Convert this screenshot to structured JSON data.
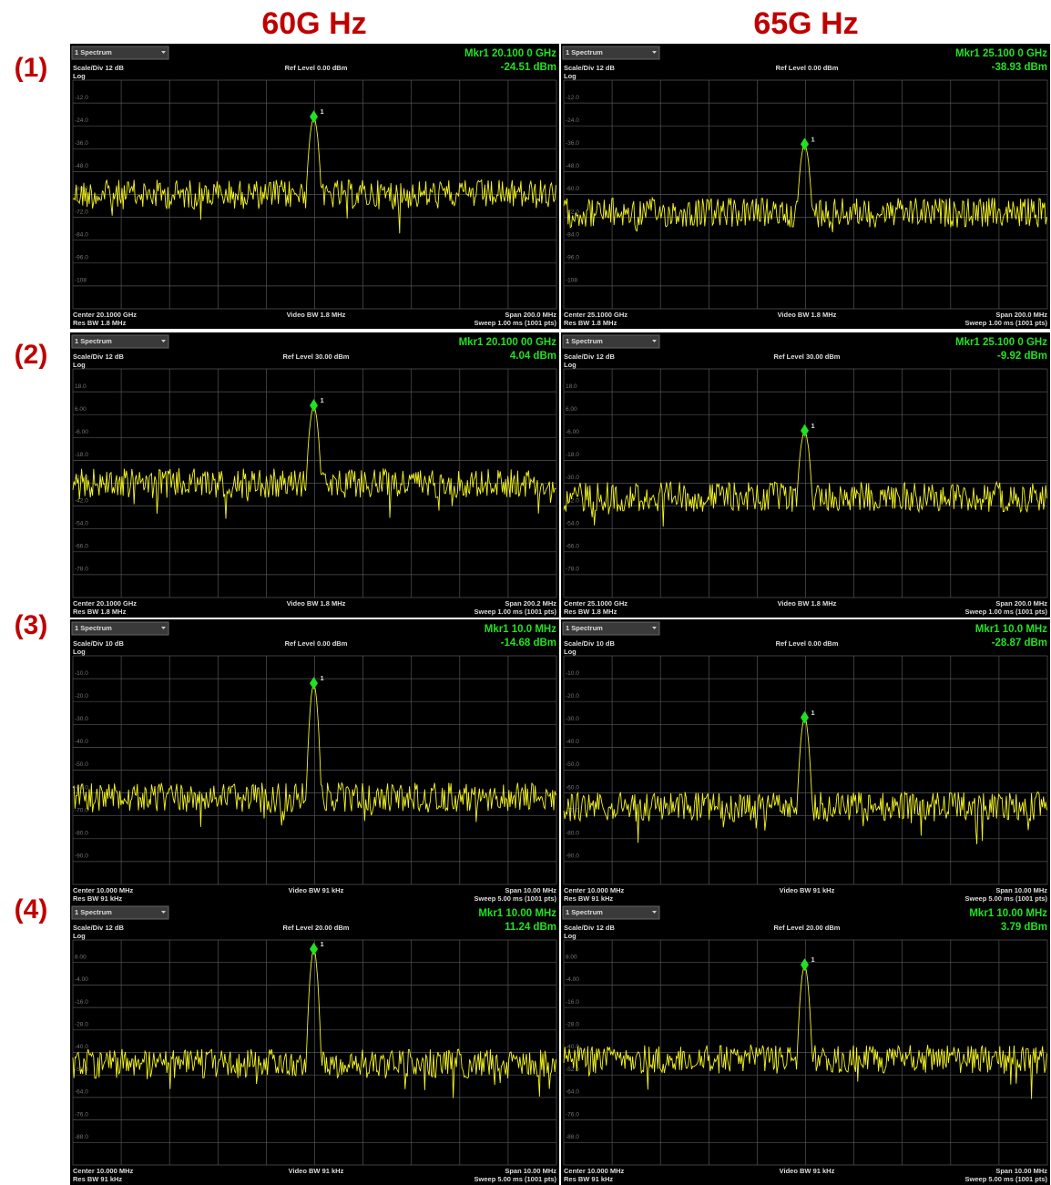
{
  "column_headers": [
    "60G Hz",
    "65G Hz"
  ],
  "row_labels": [
    "(1)",
    "(2)",
    "(3)",
    "(4)"
  ],
  "panels": [
    {
      "spectrum": "1 Spectrum",
      "marker": "Mkr1  20.100 0 GHz",
      "marker_level": "-24.51 dBm",
      "marker_id": "1",
      "scale": "Scale/Div 12 dB",
      "ref": "Ref Level 0.00 dBm",
      "log": "Log",
      "center": "Center 20.1000 GHz",
      "vbw": "Video BW 1.8 MHz",
      "span": "Span 200.0 MHz",
      "rbw": "Res BW 1.8 MHz",
      "sweep": "Sweep 1.00 ms (1001 pts)",
      "grid_labels": [
        "-12.0",
        "-24.0",
        "-36.0",
        "-48.0",
        "-60.0",
        "-72.0",
        "-84.0",
        "-96.0",
        "-108"
      ]
    },
    {
      "spectrum": "1 Spectrum",
      "marker": "Mkr1  25.100 0 GHz",
      "marker_level": "-38.93 dBm",
      "marker_id": "1",
      "scale": "Scale/Div 12 dB",
      "ref": "Ref Level 0.00 dBm",
      "log": "Log",
      "center": "Center 25.1000 GHz",
      "vbw": "Video BW 1.8 MHz",
      "span": "Span 200.0 MHz",
      "rbw": "Res BW 1.8 MHz",
      "sweep": "Sweep 1.00 ms (1001 pts)",
      "grid_labels": [
        "-12.0",
        "-24.0",
        "-36.0",
        "-48.0",
        "-60.0",
        "-72.0",
        "-84.0",
        "-96.0",
        "-108"
      ]
    },
    {
      "spectrum": "1 Spectrum",
      "marker": "Mkr1  20.100 00 GHz",
      "marker_level": "4.04 dBm",
      "marker_id": "1",
      "scale": "Scale/Div 12 dB",
      "ref": "Ref Level 30.00 dBm",
      "log": "Log",
      "center": "Center 20.1000 GHz",
      "vbw": "Video BW 1.8 MHz",
      "span": "Span 200.2 MHz",
      "rbw": "Res BW 1.8 MHz",
      "sweep": "Sweep 1.00 ms (1001 pts)",
      "grid_labels": [
        "18.0",
        "6.00",
        "-6.00",
        "-18.0",
        "-30.0",
        "-42.0",
        "-54.0",
        "-66.0",
        "-78.0"
      ]
    },
    {
      "spectrum": "1 Spectrum",
      "marker": "Mkr1  25.100 0 GHz",
      "marker_level": "-9.92 dBm",
      "marker_id": "1",
      "scale": "Scale/Div 12 dB",
      "ref": "Ref Level 30.00 dBm",
      "log": "Log",
      "center": "Center 25.1000 GHz",
      "vbw": "Video BW 1.8 MHz",
      "span": "Span 200.0 MHz",
      "rbw": "Res BW 1.8 MHz",
      "sweep": "Sweep 1.00 ms (1001 pts)",
      "grid_labels": [
        "18.0",
        "6.00",
        "-6.00",
        "-18.0",
        "-30.0",
        "-42.0",
        "-54.0",
        "-66.0",
        "-78.0"
      ]
    },
    {
      "spectrum": "1 Spectrum",
      "marker": "Mkr1  10.0 MHz",
      "marker_level": "-14.68 dBm",
      "marker_id": "1",
      "scale": "Scale/Div 10 dB",
      "ref": "Ref Level 0.00 dBm",
      "log": "Log",
      "center": "Center 10.000 MHz",
      "vbw": "Video BW 91 kHz",
      "span": "Span 10.00 MHz",
      "rbw": "Res BW 91 kHz",
      "sweep": "Sweep 5.00 ms (1001 pts)",
      "grid_labels": [
        "-10.0",
        "-20.0",
        "-30.0",
        "-40.0",
        "-50.0",
        "-60.0",
        "-70.0",
        "-80.0",
        "-90.0"
      ]
    },
    {
      "spectrum": "1 Spectrum",
      "marker": "Mkr1  10.0 MHz",
      "marker_level": "-28.87 dBm",
      "marker_id": "1",
      "scale": "Scale/Div 10 dB",
      "ref": "Ref Level 0.00 dBm",
      "log": "Log",
      "center": "Center 10.000 MHz",
      "vbw": "Video BW 91 kHz",
      "span": "Span 10.00 MHz",
      "rbw": "Res BW 91 kHz",
      "sweep": "Sweep 5.00 ms (1001 pts)",
      "grid_labels": [
        "-10.0",
        "-20.0",
        "-30.0",
        "-40.0",
        "-50.0",
        "-60.0",
        "-70.0",
        "-80.0",
        "-90.0"
      ]
    },
    {
      "spectrum": "1 Spectrum",
      "marker": "Mkr1  10.00 MHz",
      "marker_level": "11.24 dBm",
      "marker_id": "1",
      "scale": "Scale/Div 12 dB",
      "ref": "Ref Level 20.00 dBm",
      "log": "Log",
      "center": "Center 10.000 MHz",
      "vbw": "Video BW 91 kHz",
      "span": "Span 10.00 MHz",
      "rbw": "Res BW 91 kHz",
      "sweep": "Sweep 5.00 ms (1001 pts)",
      "grid_labels": [
        "8.00",
        "-4.00",
        "-16.0",
        "-28.0",
        "-40.0",
        "-52.0",
        "-64.0",
        "-76.0",
        "-88.0"
      ]
    },
    {
      "spectrum": "1 Spectrum",
      "marker": "Mkr1  10.00 MHz",
      "marker_level": "3.79 dBm",
      "marker_id": "1",
      "scale": "Scale/Div 12 dB",
      "ref": "Ref Level 20.00 dBm",
      "log": "Log",
      "center": "Center 10.000 MHz",
      "vbw": "Video BW 91 kHz",
      "span": "Span 10.00 MHz",
      "rbw": "Res BW 91 kHz",
      "sweep": "Sweep 5.00 ms (1001 pts)",
      "grid_labels": [
        "8.00",
        "-4.00",
        "-16.0",
        "-28.0",
        "-40.0",
        "-52.0",
        "-64.0",
        "-76.0",
        "-88.0"
      ]
    }
  ]
}
